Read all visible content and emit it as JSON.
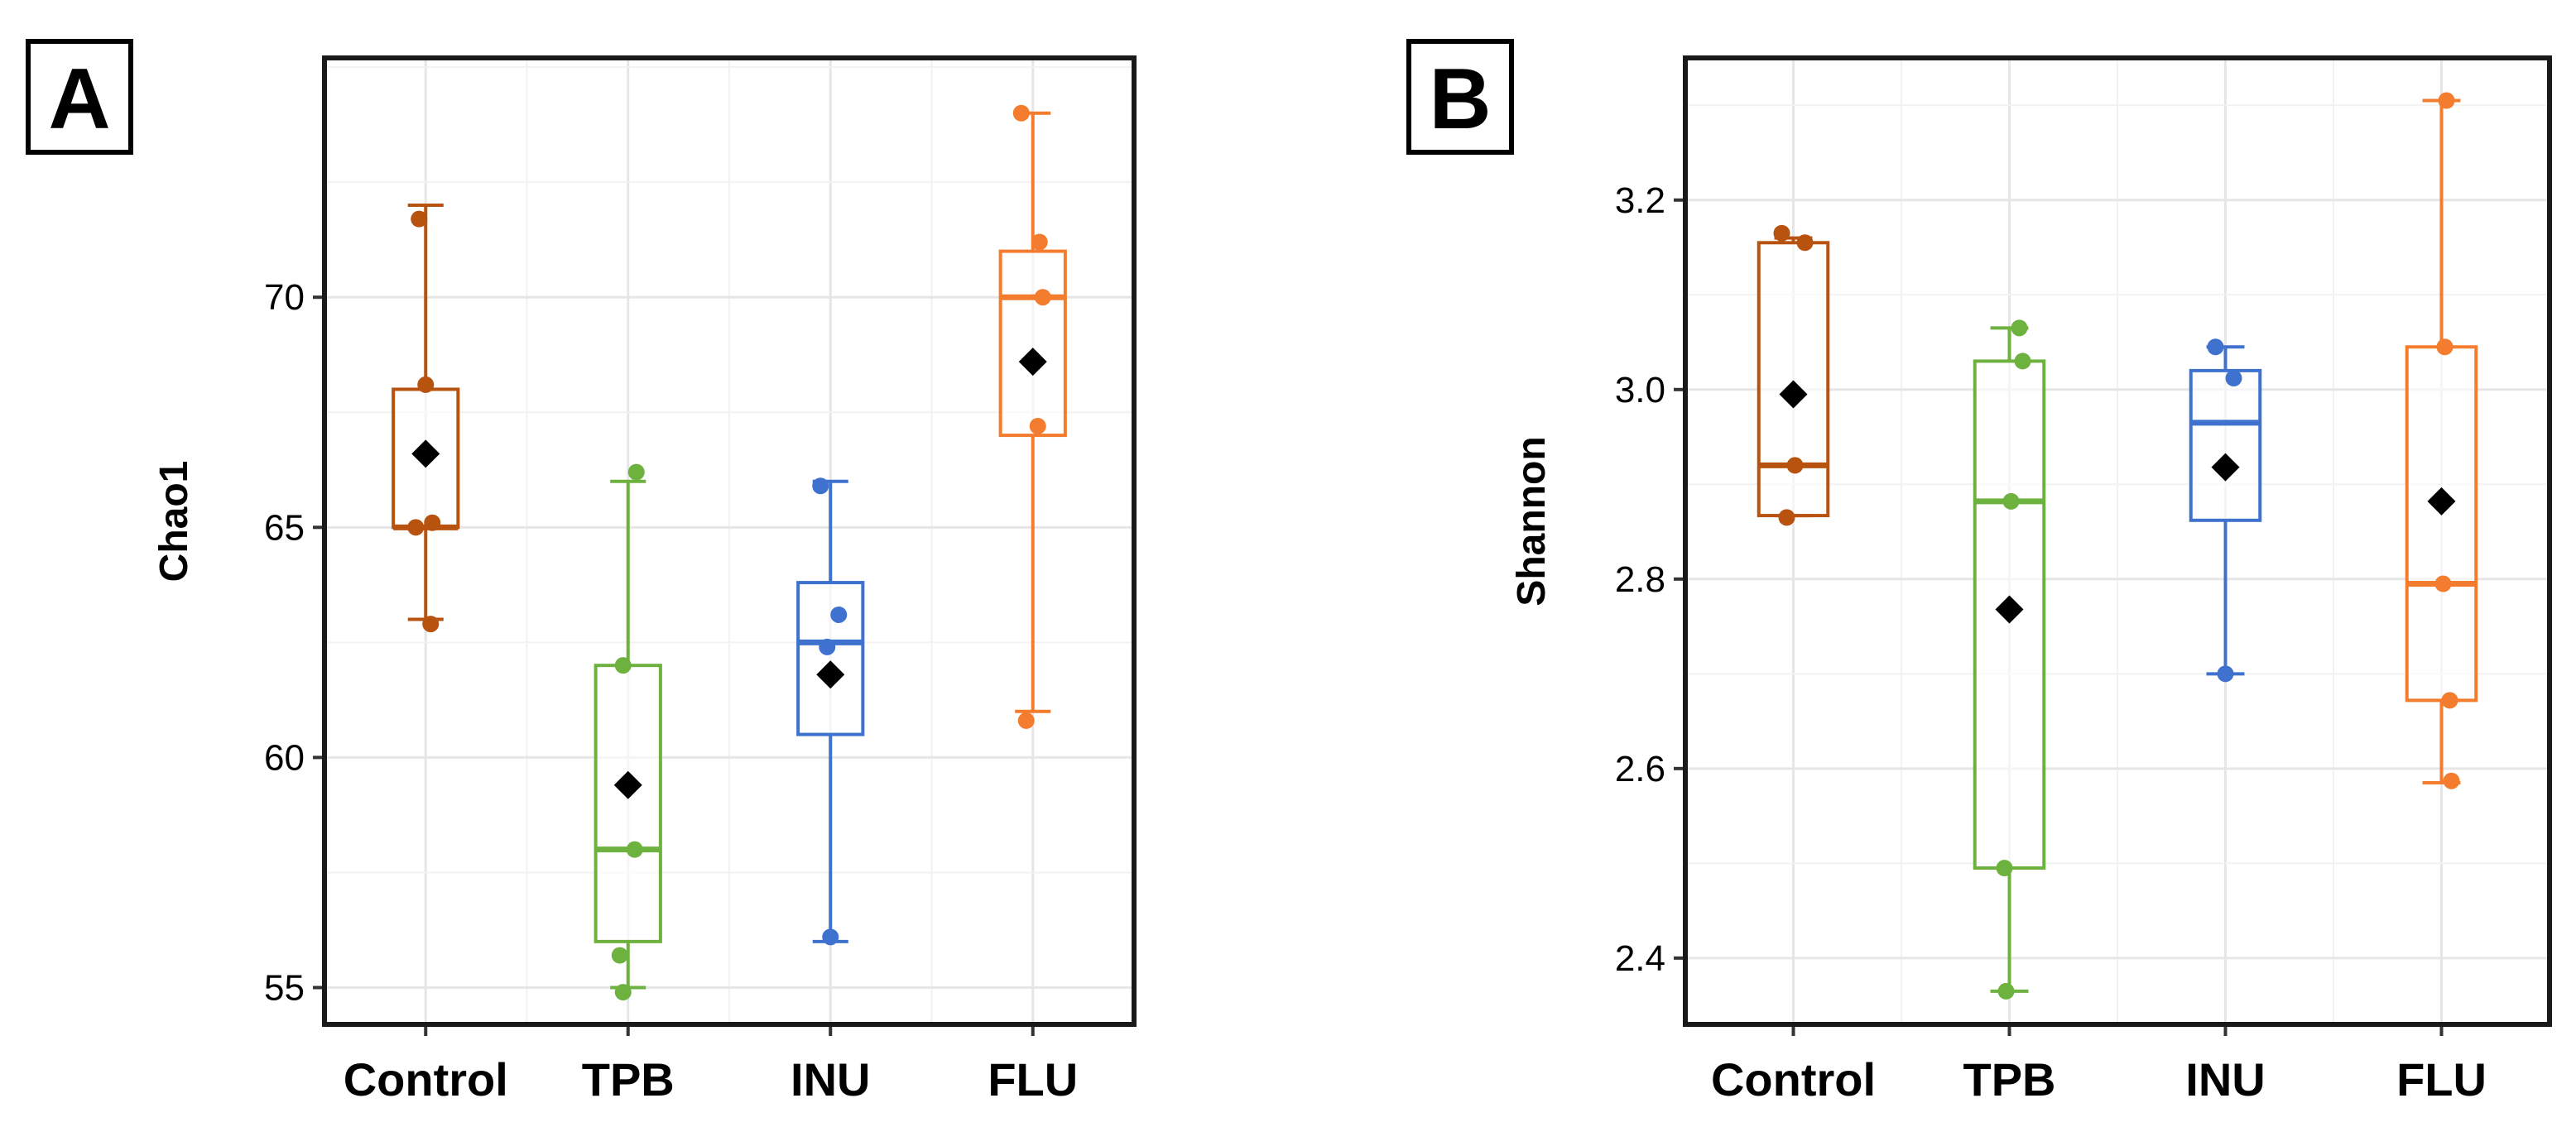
{
  "chart_data": [
    {
      "type": "box",
      "panel_label": "A",
      "title": "",
      "xlabel": "",
      "ylabel": "Chao1",
      "categories": [
        "Control",
        "TPB",
        "INU",
        "FLU"
      ],
      "ylim": [
        54.2,
        75.2
      ],
      "yticks": [
        55,
        60,
        65,
        70
      ],
      "grid": true,
      "legend": "none",
      "colors": [
        "#B8520F",
        "#6DB13F",
        "#3F72CF",
        "#F37C2E"
      ],
      "mean_marker_color": "#000000",
      "boxes": [
        {
          "category": "Control",
          "min": 63.0,
          "q1": 65.0,
          "median": 65.0,
          "q3": 68.0,
          "max": 72.0,
          "mean": 66.6,
          "points": [
            71.7,
            68.1,
            65.1,
            65.0,
            62.9
          ]
        },
        {
          "category": "TPB",
          "min": 55.0,
          "q1": 56.0,
          "median": 58.0,
          "q3": 62.0,
          "max": 66.0,
          "mean": 59.4,
          "points": [
            66.2,
            62.0,
            58.0,
            55.7,
            54.9
          ]
        },
        {
          "category": "INU",
          "min": 56.0,
          "q1": 60.5,
          "median": 62.5,
          "q3": 63.8,
          "max": 66.0,
          "mean": 61.8,
          "points": [
            65.9,
            63.1,
            62.4,
            56.1
          ]
        },
        {
          "category": "FLU",
          "min": 61.0,
          "q1": 67.0,
          "median": 70.0,
          "q3": 71.0,
          "max": 74.0,
          "mean": 68.6,
          "points": [
            74.0,
            71.2,
            70.0,
            67.2,
            60.8
          ]
        }
      ]
    },
    {
      "type": "box",
      "panel_label": "B",
      "title": "",
      "xlabel": "",
      "ylabel": "Shannon",
      "categories": [
        "Control",
        "TPB",
        "INU",
        "FLU"
      ],
      "ylim": [
        2.33,
        3.35
      ],
      "yticks": [
        2.4,
        2.6,
        2.8,
        3.0,
        3.2
      ],
      "ytick_labels": [
        "2.4",
        "2.6",
        "2.8",
        "3.0",
        "3.2"
      ],
      "grid": true,
      "legend": "none",
      "colors": [
        "#B8520F",
        "#6DB13F",
        "#3F72CF",
        "#F37C2E"
      ],
      "mean_marker_color": "#000000",
      "boxes": [
        {
          "category": "Control",
          "min": 2.867,
          "q1": 2.867,
          "median": 2.92,
          "q3": 3.155,
          "max": 3.16,
          "mean": 2.995,
          "points": [
            3.165,
            3.155,
            2.92,
            2.865
          ]
        },
        {
          "category": "TPB",
          "min": 2.365,
          "q1": 2.495,
          "median": 2.882,
          "q3": 3.03,
          "max": 3.065,
          "mean": 2.768,
          "points": [
            3.065,
            3.03,
            2.882,
            2.495,
            2.365
          ]
        },
        {
          "category": "INU",
          "min": 2.7,
          "q1": 2.862,
          "median": 2.965,
          "q3": 3.02,
          "max": 3.045,
          "mean": 2.918,
          "points": [
            3.045,
            3.012,
            2.7
          ]
        },
        {
          "category": "FLU",
          "min": 2.585,
          "q1": 2.672,
          "median": 2.795,
          "q3": 3.045,
          "max": 3.305,
          "mean": 2.882,
          "points": [
            3.305,
            3.045,
            2.795,
            2.672,
            2.587
          ]
        }
      ]
    }
  ]
}
